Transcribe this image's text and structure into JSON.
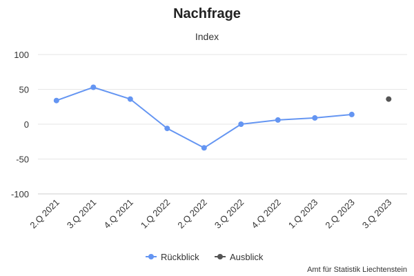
{
  "chart_data": {
    "type": "line",
    "title": "Nachfrage",
    "subtitle": "Index",
    "categories": [
      "2.Q 2021",
      "3.Q 2021",
      "4.Q 2021",
      "1.Q 2022",
      "2.Q 2022",
      "3.Q 2022",
      "4.Q 2022",
      "1.Q 2023",
      "2.Q 2023",
      "3.Q 2023"
    ],
    "ylim": [
      -100,
      100
    ],
    "yticks": [
      100,
      50,
      0,
      -50,
      -100
    ],
    "grid": true,
    "legend_position": "bottom-center",
    "series": [
      {
        "name": "Rückblick",
        "color": "#6495f2",
        "values": [
          34,
          53,
          36,
          -6,
          -34,
          0,
          6,
          9,
          14,
          null
        ]
      },
      {
        "name": "Ausblick",
        "color": "#555555",
        "values": [
          null,
          null,
          null,
          null,
          null,
          null,
          null,
          null,
          null,
          36
        ]
      }
    ]
  },
  "credit": "Amt für Statistik Liechtenstein"
}
